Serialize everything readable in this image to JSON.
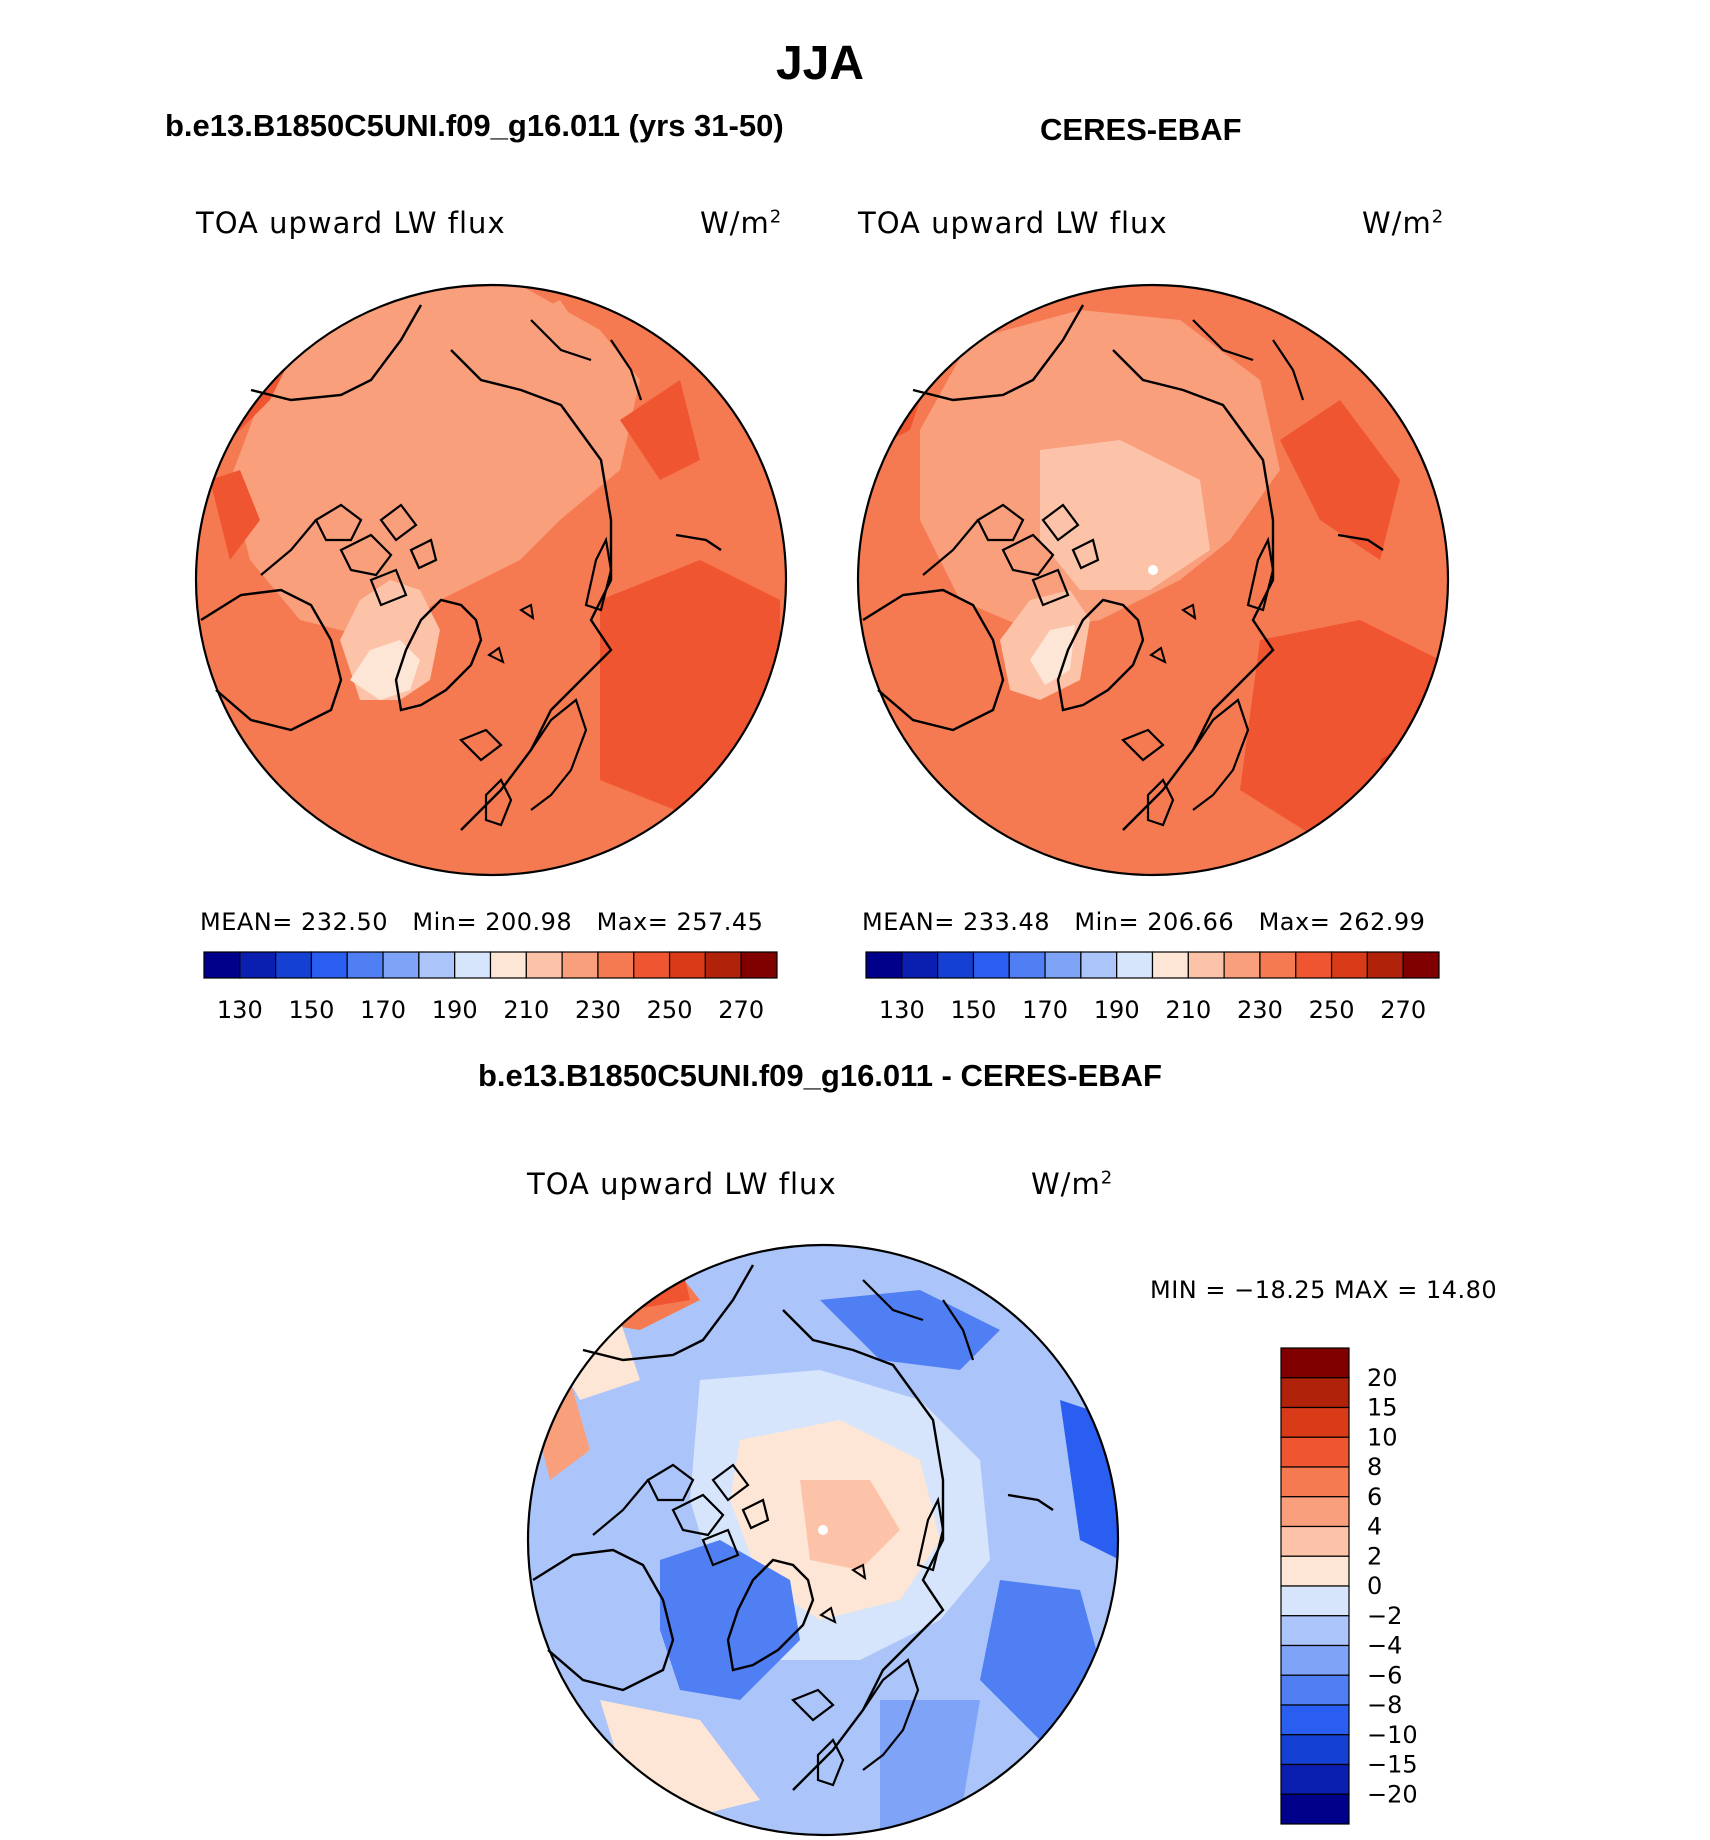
{
  "title": "JJA",
  "panels": {
    "model": {
      "title": "b.e13.B1850C5UNI.f09_g16.011 (yrs 31-50)",
      "variable": "TOA upward LW flux",
      "units": "W/m",
      "units_exp": "2",
      "stats": {
        "mean_label": "MEAN=",
        "mean": "232.50",
        "min_label": "Min=",
        "min": "200.98",
        "max_label": "Max=",
        "max": "257.45"
      }
    },
    "obs": {
      "title": "CERES-EBAF",
      "variable": "TOA upward LW flux",
      "units": "W/m",
      "units_exp": "2",
      "stats": {
        "mean_label": "MEAN=",
        "mean": "233.48",
        "min_label": "Min=",
        "min": "206.66",
        "max_label": "Max=",
        "max": "262.99"
      }
    },
    "diff": {
      "title": "b.e13.B1850C5UNI.f09_g16.011 - CERES-EBAF",
      "variable": "TOA upward LW flux",
      "units": "W/m",
      "units_exp": "2",
      "minmax": "MIN = −18.25 MAX =   14.80"
    }
  },
  "chart_data": [
    {
      "type": "heatmap",
      "projection": "north polar stereographic",
      "title": "b.e13.B1850C5UNI.f09_g16.011 (yrs 31-50)",
      "variable": "TOA upward LW flux",
      "units": "W/m2",
      "mean": 232.5,
      "min": 200.98,
      "max": 257.45,
      "colorbar": {
        "orientation": "horizontal",
        "colors": [
          "#00008b",
          "#0a1fb0",
          "#1540d4",
          "#2a5ef0",
          "#4f7ff3",
          "#7fa3f7",
          "#abc4f9",
          "#d6e4fc",
          "#fde6d6",
          "#fcc3a8",
          "#f99f7c",
          "#f57a51",
          "#ef5530",
          "#d93a17",
          "#b1220a",
          "#800000"
        ],
        "tick_labels": [
          "130",
          "150",
          "170",
          "190",
          "210",
          "230",
          "250",
          "270"
        ]
      }
    },
    {
      "type": "heatmap",
      "projection": "north polar stereographic",
      "title": "CERES-EBAF",
      "variable": "TOA upward LW flux",
      "units": "W/m2",
      "mean": 233.48,
      "min": 206.66,
      "max": 262.99,
      "colorbar": {
        "orientation": "horizontal",
        "colors": [
          "#00008b",
          "#0a1fb0",
          "#1540d4",
          "#2a5ef0",
          "#4f7ff3",
          "#7fa3f7",
          "#abc4f9",
          "#d6e4fc",
          "#fde6d6",
          "#fcc3a8",
          "#f99f7c",
          "#f57a51",
          "#ef5530",
          "#d93a17",
          "#b1220a",
          "#800000"
        ],
        "tick_labels": [
          "130",
          "150",
          "170",
          "190",
          "210",
          "230",
          "250",
          "270"
        ]
      }
    },
    {
      "type": "heatmap",
      "projection": "north polar stereographic",
      "title": "b.e13.B1850C5UNI.f09_g16.011 - CERES-EBAF",
      "variable": "TOA upward LW flux",
      "units": "W/m2",
      "min": -18.25,
      "max": 14.8,
      "colorbar": {
        "orientation": "vertical",
        "colors": [
          "#00008b",
          "#0a1fb0",
          "#1540d4",
          "#2a5ef0",
          "#4f7ff3",
          "#7fa3f7",
          "#abc4f9",
          "#d6e4fc",
          "#fde6d6",
          "#fcc3a8",
          "#f99f7c",
          "#f57a51",
          "#ef5530",
          "#d93a17",
          "#b1220a",
          "#800000"
        ],
        "tick_labels": [
          "20",
          "15",
          "10",
          "8",
          "6",
          "4",
          "2",
          "0",
          "−2",
          "−4",
          "−6",
          "−8",
          "−10",
          "−15",
          "−20"
        ]
      }
    }
  ]
}
